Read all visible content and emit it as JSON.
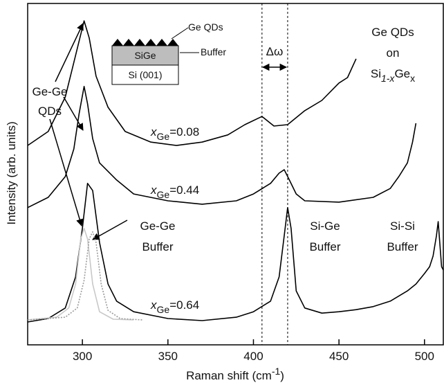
{
  "chart_data": {
    "type": "line",
    "xlabel": {
      "text": "Raman shift (cm",
      "sup": "-1",
      "close": ")"
    },
    "ylabel": "Intensity (arb. units)",
    "xlim": [
      268,
      511
    ],
    "ylim": [
      0,
      100
    ],
    "xticks": [
      300,
      350,
      400,
      450,
      500
    ],
    "dashed_lines": [
      405,
      420
    ],
    "series": [
      {
        "color": "#000000",
        "x": [
          268,
          280,
          290,
          296,
          301,
          304,
          308,
          315,
          325,
          340,
          355,
          370,
          385,
          395,
          405,
          412,
          420,
          430,
          440,
          450,
          455,
          460
        ],
        "values": [
          58.4,
          62.5,
          72.6,
          84.8,
          94.9,
          89.9,
          78.7,
          69.6,
          62.5,
          59.4,
          58.4,
          59.4,
          61.5,
          64.5,
          66.9,
          64.1,
          64.5,
          68.6,
          71.6,
          76.7,
          78.3,
          83.8
        ]
      },
      {
        "color": "#000000",
        "x": [
          268,
          280,
          290,
          295,
          298,
          301,
          303,
          306,
          310,
          320,
          330,
          350,
          370,
          390,
          400,
          410,
          415,
          418,
          421,
          425,
          430,
          450,
          470,
          480,
          485,
          490,
          493,
          495
        ],
        "values": [
          40.2,
          43.2,
          49.3,
          57.4,
          67.5,
          75.7,
          70.6,
          60.4,
          53.3,
          48.3,
          44.2,
          42.2,
          41.2,
          42.2,
          44.2,
          47.3,
          50.3,
          51.3,
          48.3,
          44.2,
          42.2,
          41.8,
          43.2,
          45.8,
          49.3,
          53.3,
          59.4,
          64.9
        ]
      },
      {
        "color": "#000000",
        "x": [
          268,
          280,
          290,
          296,
          300,
          303,
          306,
          310,
          315,
          320,
          330,
          350,
          370,
          390,
          400,
          410,
          415,
          418,
          420,
          422,
          425,
          430,
          440,
          450,
          460,
          470,
          480,
          490,
          495,
          500,
          503,
          505,
          507,
          508,
          510,
          511
        ],
        "values": [
          6.7,
          7.7,
          10.8,
          19.9,
          34.1,
          47.3,
          45.2,
          30.0,
          17.8,
          12.8,
          9.7,
          7.7,
          7.1,
          8.1,
          9.7,
          12.8,
          19.9,
          32.0,
          40.2,
          34.1,
          15.8,
          10.8,
          9.3,
          9.7,
          10.3,
          11.2,
          12.8,
          15.8,
          17.8,
          20.9,
          22.9,
          26.0,
          32.0,
          36.1,
          22.9,
          21.9
        ]
      },
      {
        "color": "#c8c8c8",
        "x": [
          268,
          285,
          292,
          296,
          299,
          301,
          303,
          306,
          310,
          318,
          330
        ],
        "values": [
          7.3,
          8.1,
          10.8,
          17.8,
          31.0,
          34.1,
          31.0,
          17.8,
          9.7,
          7.5,
          7.3
        ]
      },
      {
        "color": "#999999",
        "dash": "2 2",
        "x": [
          268,
          290,
          297,
          301,
          304,
          306,
          308,
          311,
          315,
          322,
          335
        ],
        "values": [
          7.3,
          8.1,
          10.8,
          18.9,
          31.0,
          33.1,
          30.0,
          17.8,
          10.1,
          7.7,
          7.3
        ]
      }
    ],
    "curve_labels": [
      {
        "var": "x",
        "sub": "Ge",
        "text": "=0.08"
      },
      {
        "var": "x",
        "sub": "Ge",
        "text": "=0.44"
      },
      {
        "var": "x",
        "sub": "Ge",
        "text": "=0.64"
      }
    ],
    "annotations": {
      "inset_top": "Ge QDs",
      "inset_buffer": "Buffer",
      "inset_layer": "SiGe",
      "inset_substrate": "Si (001)",
      "qd_label": [
        "Ge-Ge",
        "QDs"
      ],
      "sample": {
        "line1": "Ge QDs",
        "line2": "on",
        "a": "Si",
        "a_sub": "1-x",
        "b": "Ge",
        "b_sub": "x"
      },
      "delta": "Δω",
      "sige_buffer": [
        "Si-Ge",
        "Buffer"
      ],
      "sisi_buffer": [
        "Si-Si",
        "Buffer"
      ],
      "gege_buffer": [
        "Ge-Ge",
        "Buffer"
      ]
    }
  }
}
